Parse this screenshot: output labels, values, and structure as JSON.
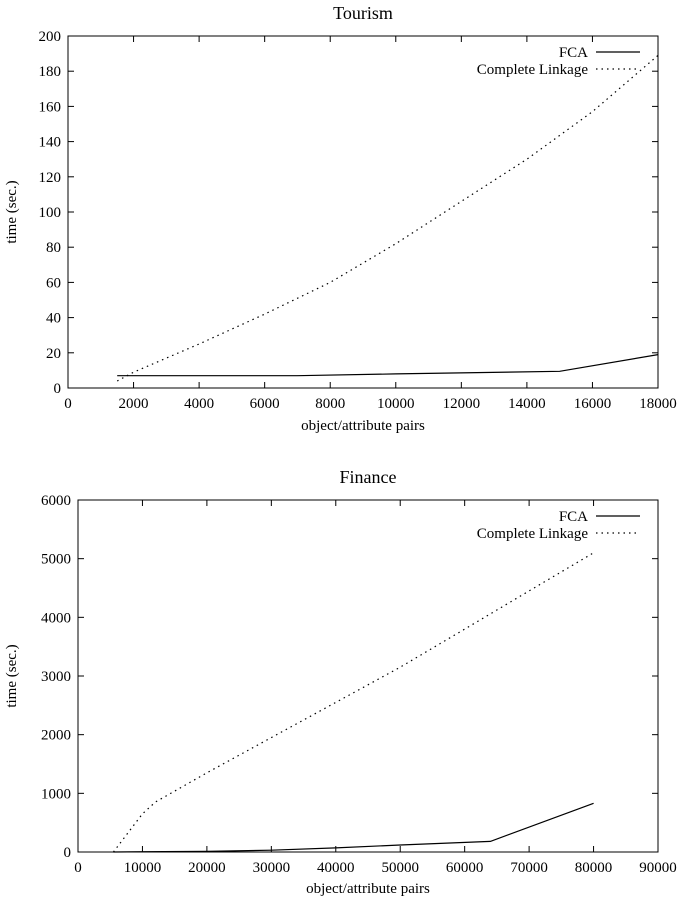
{
  "chart_data": [
    {
      "type": "line",
      "title": "Tourism",
      "xlabel": "object/attribute pairs",
      "ylabel": "time (sec.)",
      "xlim": [
        0,
        18000
      ],
      "ylim": [
        0,
        200
      ],
      "xticks": [
        0,
        2000,
        4000,
        6000,
        8000,
        10000,
        12000,
        14000,
        16000,
        18000
      ],
      "yticks": [
        0,
        20,
        40,
        60,
        80,
        100,
        120,
        140,
        160,
        180,
        200
      ],
      "legend_position": "top-right",
      "grid": false,
      "series": [
        {
          "name": "FCA",
          "style": "solid",
          "x": [
            1500,
            3000,
            7000,
            10000,
            15000,
            18000
          ],
          "y": [
            7,
            7,
            7,
            8,
            9.5,
            19
          ]
        },
        {
          "name": "Complete Linkage",
          "style": "dotted",
          "x": [
            1500,
            2000,
            4000,
            6000,
            8000,
            10000,
            12000,
            14000,
            16000,
            18000
          ],
          "y": [
            4,
            9,
            25,
            42,
            60,
            82,
            106,
            130,
            157,
            189
          ]
        }
      ]
    },
    {
      "type": "line",
      "title": "Finance",
      "xlabel": "object/attribute pairs",
      "ylabel": "time (sec.)",
      "xlim": [
        0,
        90000
      ],
      "ylim": [
        0,
        6000
      ],
      "xticks": [
        0,
        10000,
        20000,
        30000,
        40000,
        50000,
        60000,
        70000,
        80000,
        90000
      ],
      "yticks": [
        0,
        1000,
        2000,
        3000,
        4000,
        5000,
        6000
      ],
      "legend_position": "top-right",
      "grid": false,
      "series": [
        {
          "name": "FCA",
          "style": "solid",
          "x": [
            5500,
            10000,
            20000,
            30000,
            40000,
            50000,
            64000,
            80000
          ],
          "y": [
            0,
            5,
            10,
            30,
            70,
            120,
            180,
            830
          ]
        },
        {
          "name": "Complete Linkage",
          "style": "dotted",
          "x": [
            5500,
            10000,
            12000,
            20000,
            30000,
            40000,
            50000,
            60000,
            70000,
            80000
          ],
          "y": [
            0,
            650,
            850,
            1350,
            1950,
            2550,
            3150,
            3800,
            4450,
            5100
          ]
        }
      ]
    }
  ]
}
